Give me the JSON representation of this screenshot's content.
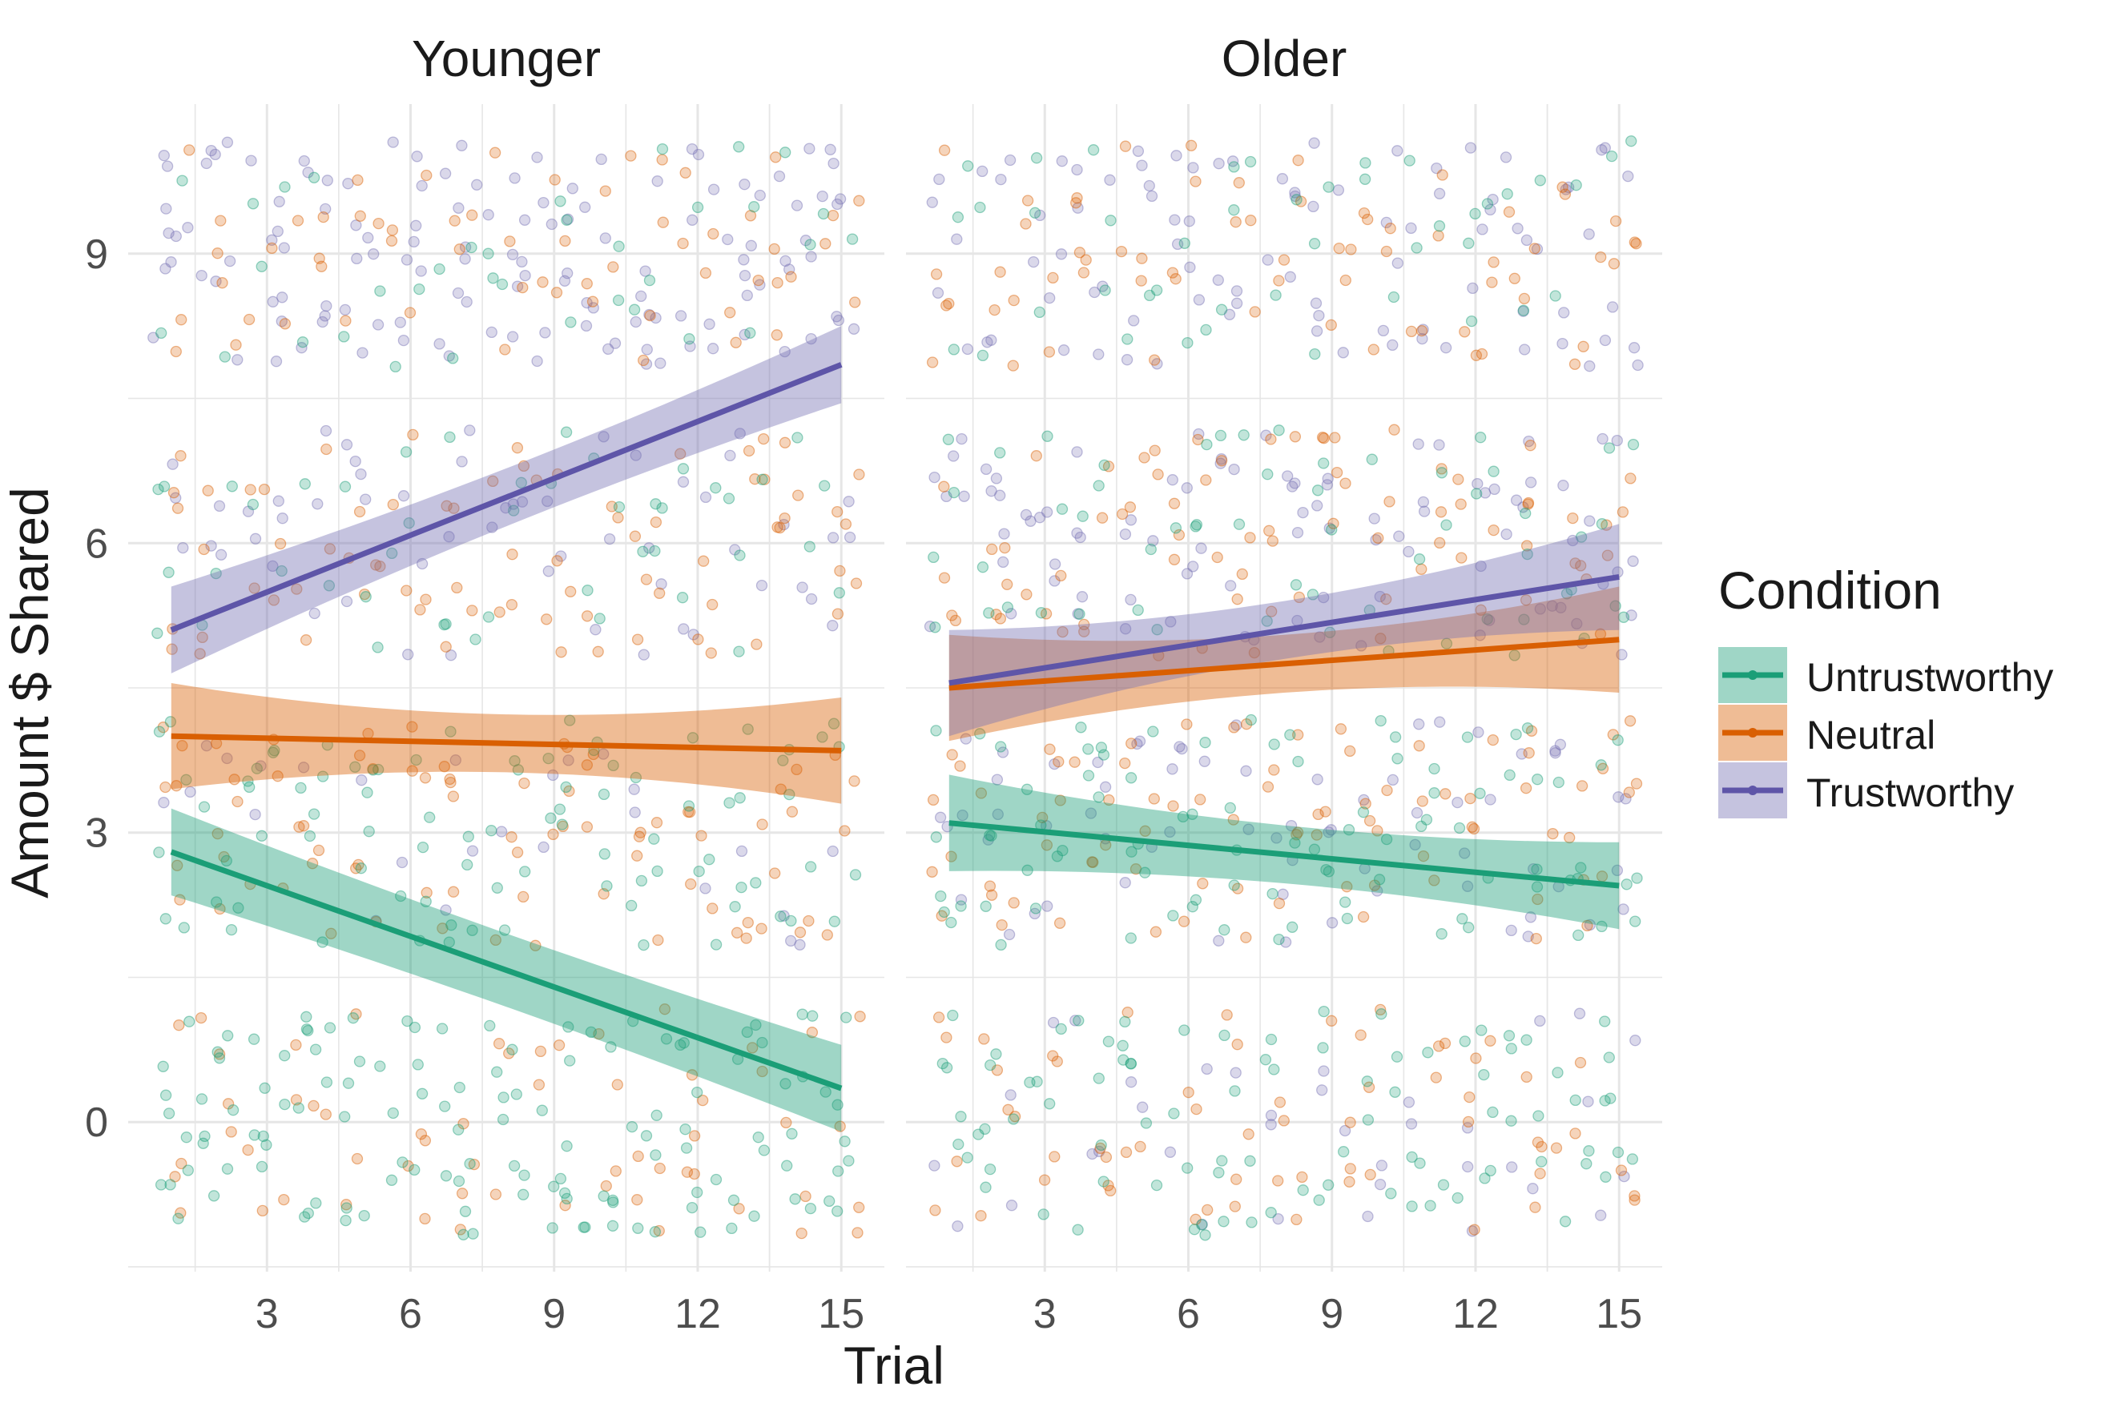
{
  "chart_data": {
    "type": "scatter",
    "subtype": "faceted scatter with linear regression lines and confidence bands",
    "xlabel": "Trial",
    "ylabel": "Amount $ Shared",
    "xlim": [
      0.1,
      15.9
    ],
    "ylim": [
      -1.55,
      10.55
    ],
    "x_ticks": [
      3,
      6,
      9,
      12,
      15
    ],
    "y_ticks": [
      0,
      3,
      6,
      9
    ],
    "grid": true,
    "legend": {
      "title": "Condition",
      "placement": "right",
      "entries": [
        "Untrustworthy",
        "Neutral",
        "Trustworthy"
      ]
    },
    "colors": {
      "Untrustworthy": "#1b9e77",
      "Neutral": "#d95f02",
      "Trustworthy": "#7570b3",
      "Trustworthy_line": "#5e55a8",
      "grid": "#e6e6e6",
      "text": "#1a1a1a",
      "tick_text": "#4d4d4d"
    },
    "panels": [
      {
        "title": "Younger",
        "series": [
          {
            "name": "Untrustworthy",
            "fit": {
              "x": [
                1,
                15
              ],
              "y": [
                2.8,
                0.35
              ]
            },
            "band_width": [
              0.45,
              0.38,
              0.45
            ]
          },
          {
            "name": "Neutral",
            "fit": {
              "x": [
                1,
                15
              ],
              "y": [
                4.0,
                3.85
              ]
            },
            "band_width": [
              0.55,
              0.3,
              0.55
            ]
          },
          {
            "name": "Trustworthy",
            "fit": {
              "x": [
                1,
                15
              ],
              "y": [
                5.1,
                7.85
              ]
            },
            "band_width": [
              0.45,
              0.3,
              0.4
            ]
          }
        ],
        "scatter_groups": [
          {
            "name": "Trustworthy",
            "y_centers": [
              3,
              6,
              9
            ],
            "bias": [
              0.05,
              0.2,
              0.55
            ]
          },
          {
            "name": "Neutral",
            "y_centers": [
              0,
              3,
              6,
              9
            ],
            "bias": [
              0.2,
              0.3,
              0.3,
              0.2
            ]
          },
          {
            "name": "Untrustworthy",
            "y_centers": [
              0,
              3,
              6,
              9
            ],
            "bias": [
              0.55,
              0.35,
              0.15,
              0.08
            ]
          }
        ]
      },
      {
        "title": "Older",
        "series": [
          {
            "name": "Untrustworthy",
            "fit": {
              "x": [
                1,
                15
              ],
              "y": [
                3.1,
                2.45
              ]
            },
            "band_width": [
              0.5,
              0.3,
              0.45
            ]
          },
          {
            "name": "Neutral",
            "fit": {
              "x": [
                1,
                15
              ],
              "y": [
                4.5,
                5.0
              ]
            },
            "band_width": [
              0.55,
              0.3,
              0.55
            ]
          },
          {
            "name": "Trustworthy",
            "fit": {
              "x": [
                1,
                15
              ],
              "y": [
                4.55,
                5.65
              ]
            },
            "band_width": [
              0.55,
              0.3,
              0.55
            ]
          }
        ],
        "scatter_groups": [
          {
            "name": "Trustworthy",
            "y_centers": [
              0,
              3,
              6,
              9
            ],
            "bias": [
              0.1,
              0.25,
              0.35,
              0.35
            ]
          },
          {
            "name": "Neutral",
            "y_centers": [
              0,
              3,
              6,
              9
            ],
            "bias": [
              0.2,
              0.3,
              0.3,
              0.25
            ]
          },
          {
            "name": "Untrustworthy",
            "y_centers": [
              0,
              3,
              6,
              9
            ],
            "bias": [
              0.35,
              0.35,
              0.2,
              0.15
            ]
          }
        ]
      }
    ]
  }
}
